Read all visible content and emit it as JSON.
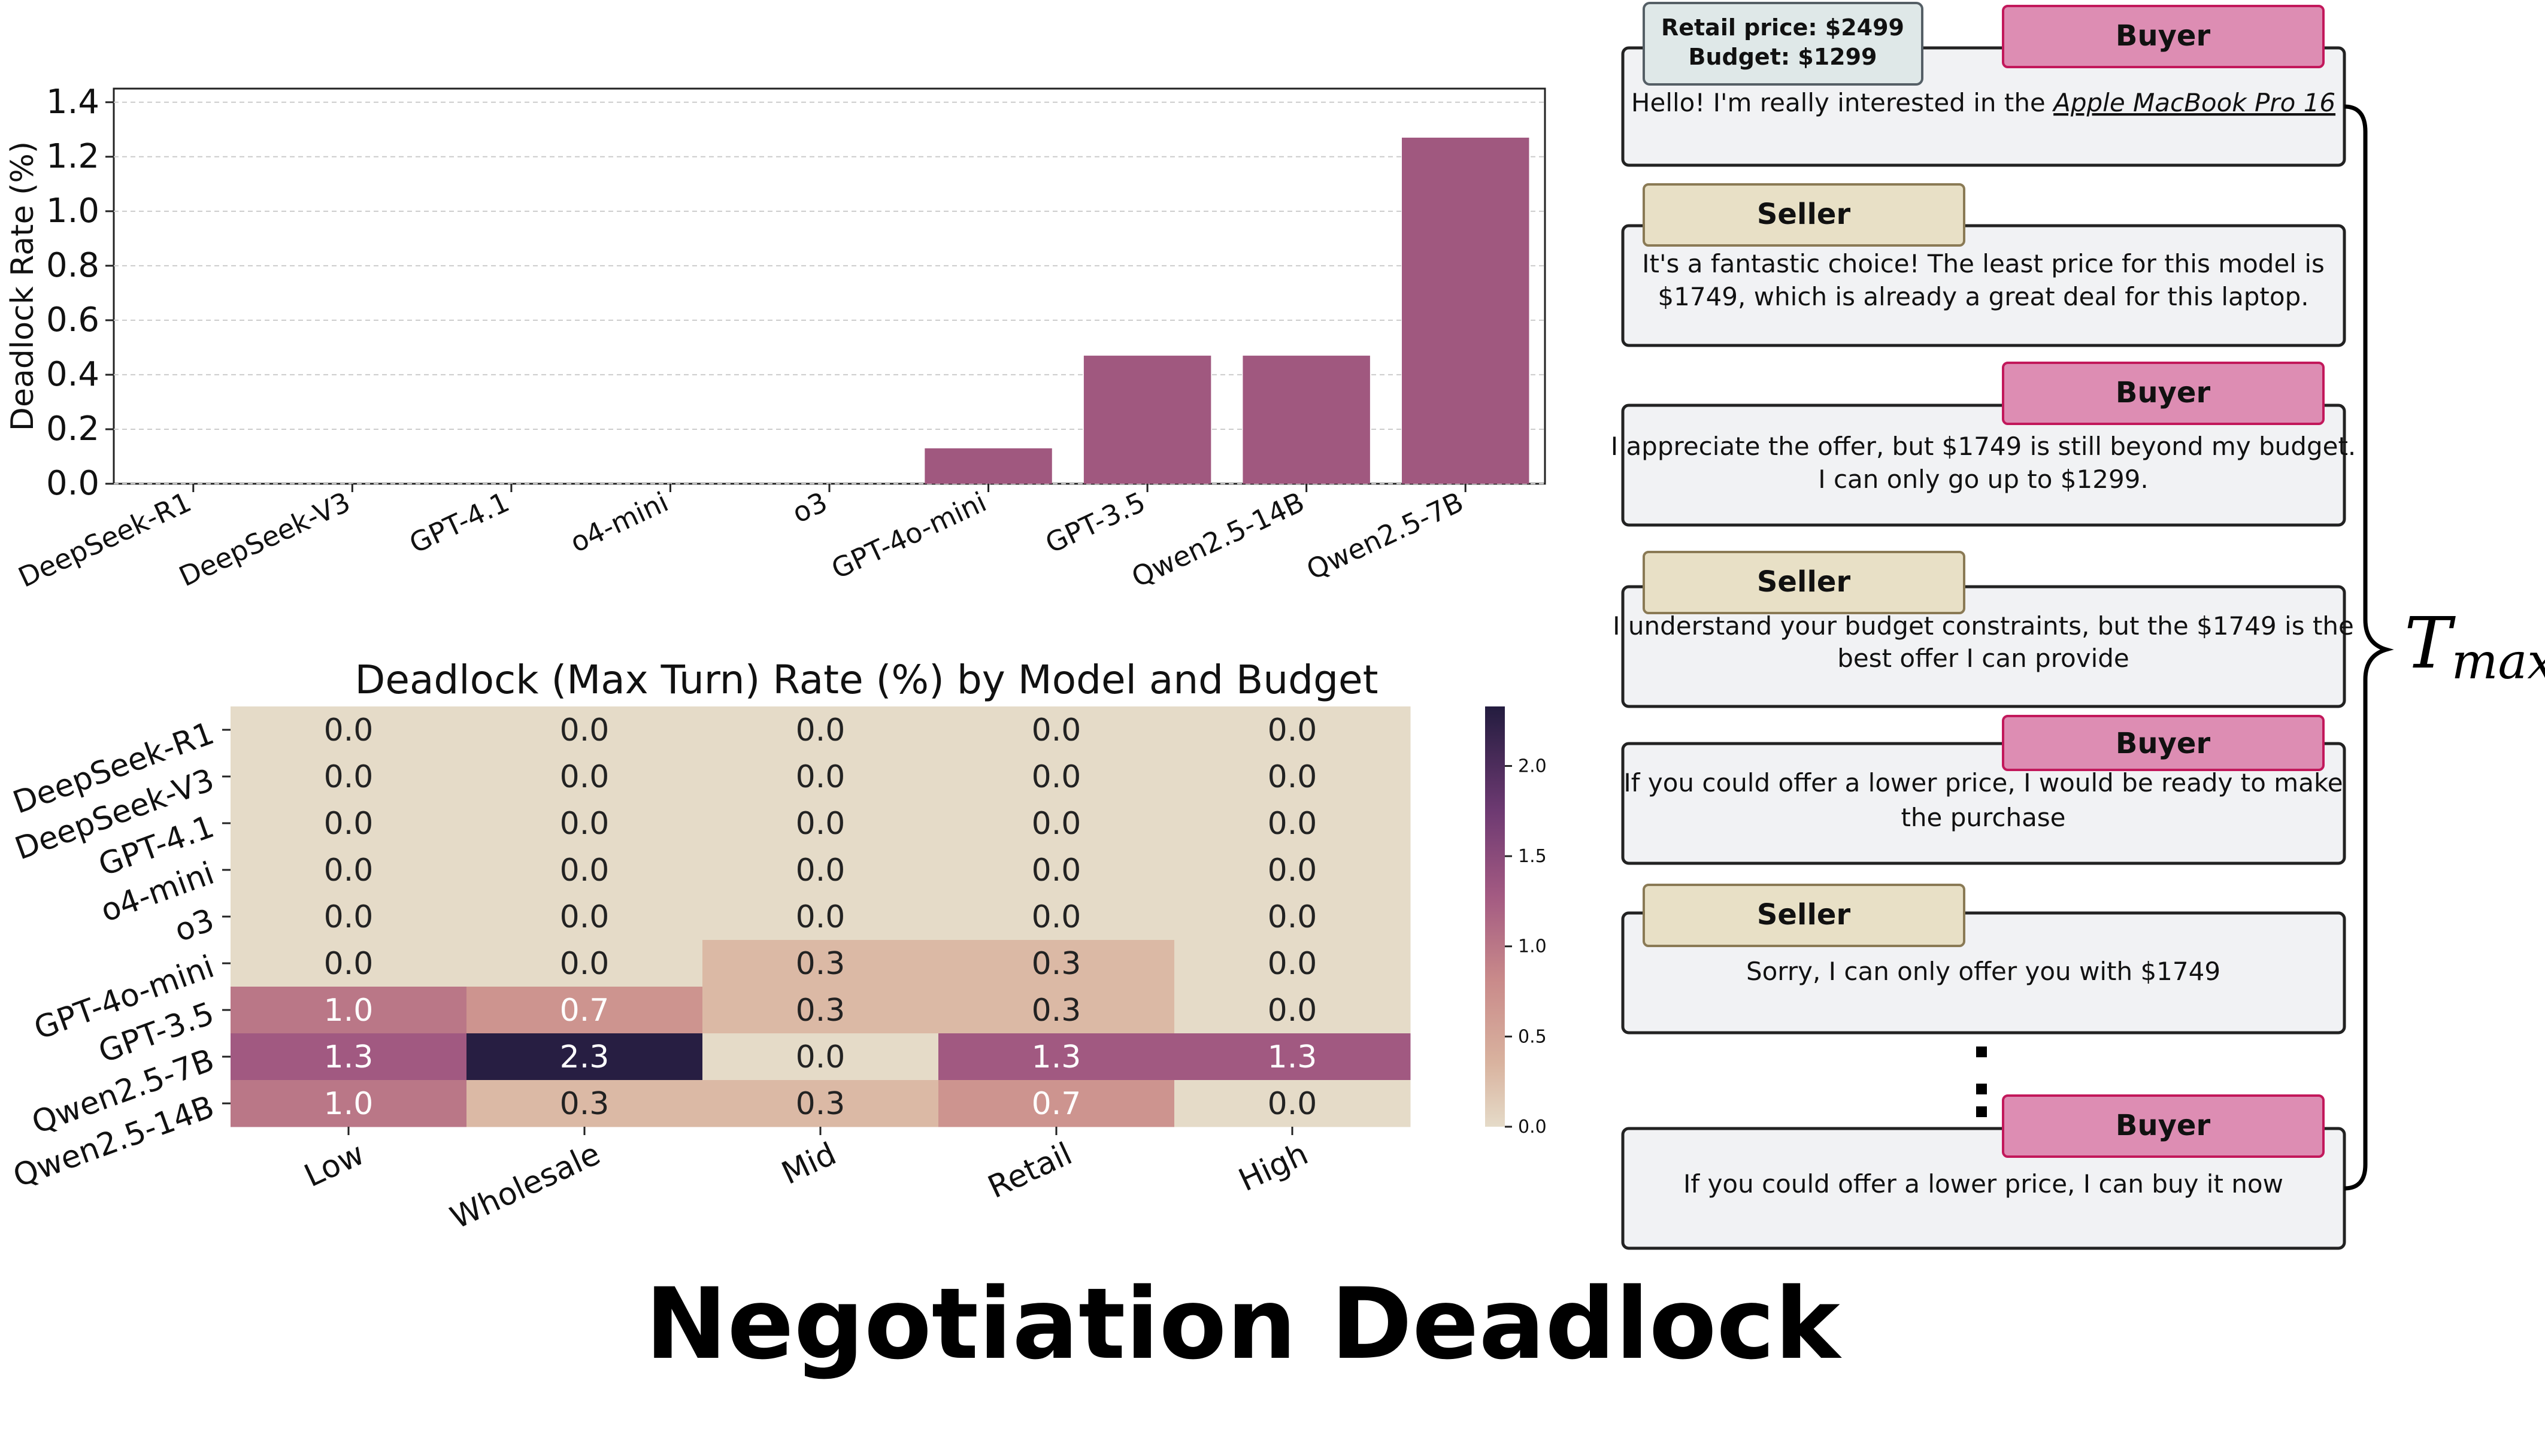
{
  "figure_title": "Negotiation Deadlock",
  "chart_data": [
    {
      "type": "bar",
      "categories": [
        "DeepSeek-R1",
        "DeepSeek-V3",
        "GPT-4.1",
        "o4-mini",
        "o3",
        "GPT-4o-mini",
        "GPT-3.5",
        "Qwen2.5-14B",
        "Qwen2.5-7B"
      ],
      "values": [
        0.0,
        0.0,
        0.0,
        0.0,
        0.0,
        0.13,
        0.47,
        0.47,
        1.27
      ],
      "ylabel": "Deadlock Rate (%)",
      "ylim": [
        0,
        1.45
      ],
      "yticks": [
        "0.0",
        "0.2",
        "0.4",
        "0.6",
        "0.8",
        "1.0",
        "1.2",
        "1.4"
      ],
      "grid": true,
      "bar_color": "#a0587f"
    },
    {
      "type": "heatmap",
      "title": "Deadlock (Max Turn) Rate (%) by Model and Budget",
      "rows": [
        "DeepSeek-R1",
        "DeepSeek-V3",
        "GPT-4.1",
        "o4-mini",
        "o3",
        "GPT-4o-mini",
        "GPT-3.5",
        "Qwen2.5-7B",
        "Qwen2.5-14B"
      ],
      "columns": [
        "Low",
        "Wholesale",
        "Mid",
        "Retail",
        "High"
      ],
      "values": [
        [
          0.0,
          0.0,
          0.0,
          0.0,
          0.0
        ],
        [
          0.0,
          0.0,
          0.0,
          0.0,
          0.0
        ],
        [
          0.0,
          0.0,
          0.0,
          0.0,
          0.0
        ],
        [
          0.0,
          0.0,
          0.0,
          0.0,
          0.0
        ],
        [
          0.0,
          0.0,
          0.0,
          0.0,
          0.0
        ],
        [
          0.0,
          0.0,
          0.3,
          0.3,
          0.0
        ],
        [
          1.0,
          0.7,
          0.3,
          0.3,
          0.0
        ],
        [
          1.3,
          2.3,
          0.0,
          1.3,
          1.3
        ],
        [
          1.0,
          0.3,
          0.3,
          0.7,
          0.0
        ]
      ],
      "colorbar_ticks": [
        "0.0",
        "0.5",
        "1.0",
        "1.5",
        "2.0"
      ],
      "vmin": 0.0,
      "vmax": 2.33
    }
  ],
  "dialogue": {
    "info_box": [
      "Retail price: $2499",
      "Budget: $1299"
    ],
    "buyer_label": "Buyer",
    "seller_label": "Seller",
    "msg1_prefix": "Hello! I'm really interested in the ",
    "msg1_product": "Apple MacBook Pro 16",
    "msg2": [
      "It's a fantastic choice! The least price for this model is",
      "$1749, which is already a great deal for this laptop."
    ],
    "msg3": [
      "I appreciate the offer, but $1749 is still beyond my budget.",
      "I can only go up to $1299."
    ],
    "msg4": [
      "I understand your budget constraints, but the $1749 is the",
      "best offer I can provide"
    ],
    "msg5": [
      "If you could offer a lower price, I would be ready to make",
      "the purchase"
    ],
    "msg6": "Sorry, I can only offer you with $1749",
    "msg7": "If you could offer a lower price, I can buy it now",
    "tmax_main": "T",
    "tmax_sub": "max"
  },
  "colors": {
    "bar": "#a0587f",
    "buyer_tag": "#dd8db3",
    "buyer_border": "#c2185b",
    "seller_tag": "#e8e0c6",
    "seller_border": "#8a7a55",
    "info_tag": "#dfe8e8",
    "bubble": "#f1f2f4"
  }
}
